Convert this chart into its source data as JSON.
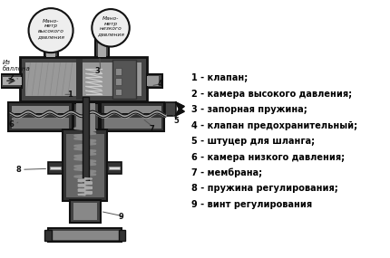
{
  "background_color": "#ffffff",
  "legend_items": [
    "1 - клапан;",
    "2 - камера высокого давления;",
    "3 - запорная пружина;",
    "4 - клапан предохранительный;",
    "5 - штуцер для шланга;",
    "6 - камера низкого давления;",
    "7 - мембрана;",
    "8 - пружина регулирования;",
    "9 - винт регулирования"
  ],
  "gauge1_label": "Мано-\nметр\nвысокого\nдавления",
  "gauge2_label": "Мано-\nметр\nнизкого\nдавления",
  "from_balloon": "Из\nбаллона",
  "body_color": "#111111",
  "fill_color": "#777777",
  "light_fill": "#bbbbbb",
  "spring_color": "#666666"
}
